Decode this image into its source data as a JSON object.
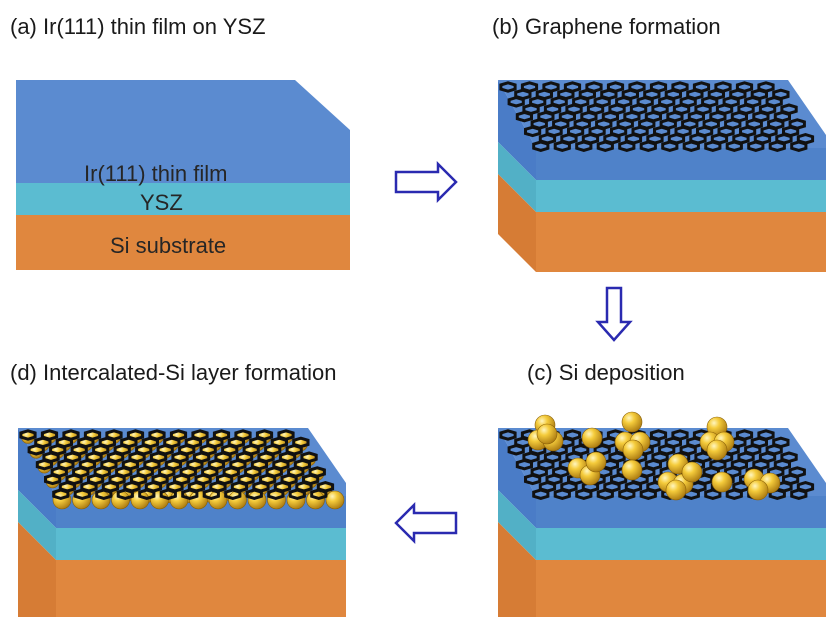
{
  "panels": {
    "a": {
      "title": "(a) Ir(111) thin film  on YSZ",
      "labels": {
        "ir": "Ir(111) thin film",
        "ysz": "YSZ",
        "si": "Si substrate"
      }
    },
    "b": {
      "title": "(b) Graphene formation"
    },
    "c": {
      "title": "(c) Si deposition"
    },
    "d": {
      "title": "(d) Intercalated-Si layer formation"
    }
  },
  "colors": {
    "ir_top": "#5b8bd0",
    "ir_side": "#4a7cc7",
    "ysz": "#5bbcd1",
    "si": "#e0873e",
    "graphene": "#111111",
    "sphere": "#f2c230",
    "arrow": "#2a2ab0"
  }
}
